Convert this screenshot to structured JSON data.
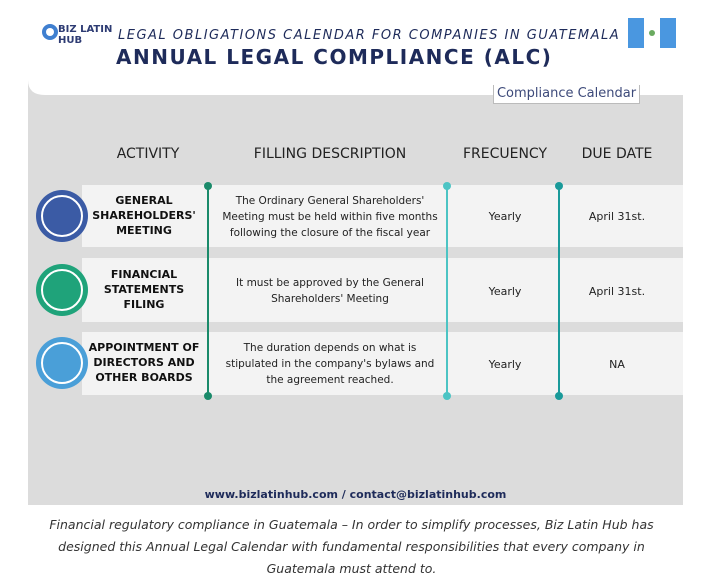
{
  "header": {
    "logo_top": "BIZ LATIN",
    "logo_bottom": "HUB",
    "subtitle": "LEGAL OBLIGATIONS CALENDAR FOR COMPANIES IN GUATEMALA",
    "title": "ANNUAL LEGAL COMPLIANCE (ALC)"
  },
  "tab": "Compliance Calendar",
  "table": {
    "columns": [
      "ACTIVITY",
      "FILLING DESCRIPTION",
      "FRECUENCY",
      "DUE DATE"
    ],
    "rows": [
      [
        "GENERAL SHAREHOLDERS' MEETING",
        "The Ordinary General Shareholders' Meeting must be held within five months following the closure of the fiscal year",
        "Yearly",
        "April 31st."
      ],
      [
        "FINANCIAL STATEMENTS FILING",
        "It must be approved by the General Shareholders' Meeting",
        "Yearly",
        "April 31st."
      ],
      [
        "APPOINTMENT OF DIRECTORS AND OTHER BOARDS",
        "The duration depends on what is stipulated in the company's bylaws and the agreement reached.",
        "Yearly",
        "NA"
      ]
    ]
  },
  "footer": "www.bizlatinhub.com / contact@bizlatinhub.com",
  "caption": "Financial regulatory compliance in Guatemala – In order to simplify processes, Biz Latin Hub has designed this Annual Legal Calendar with fundamental responsibilities that every company in Guatemala must attend to."
}
